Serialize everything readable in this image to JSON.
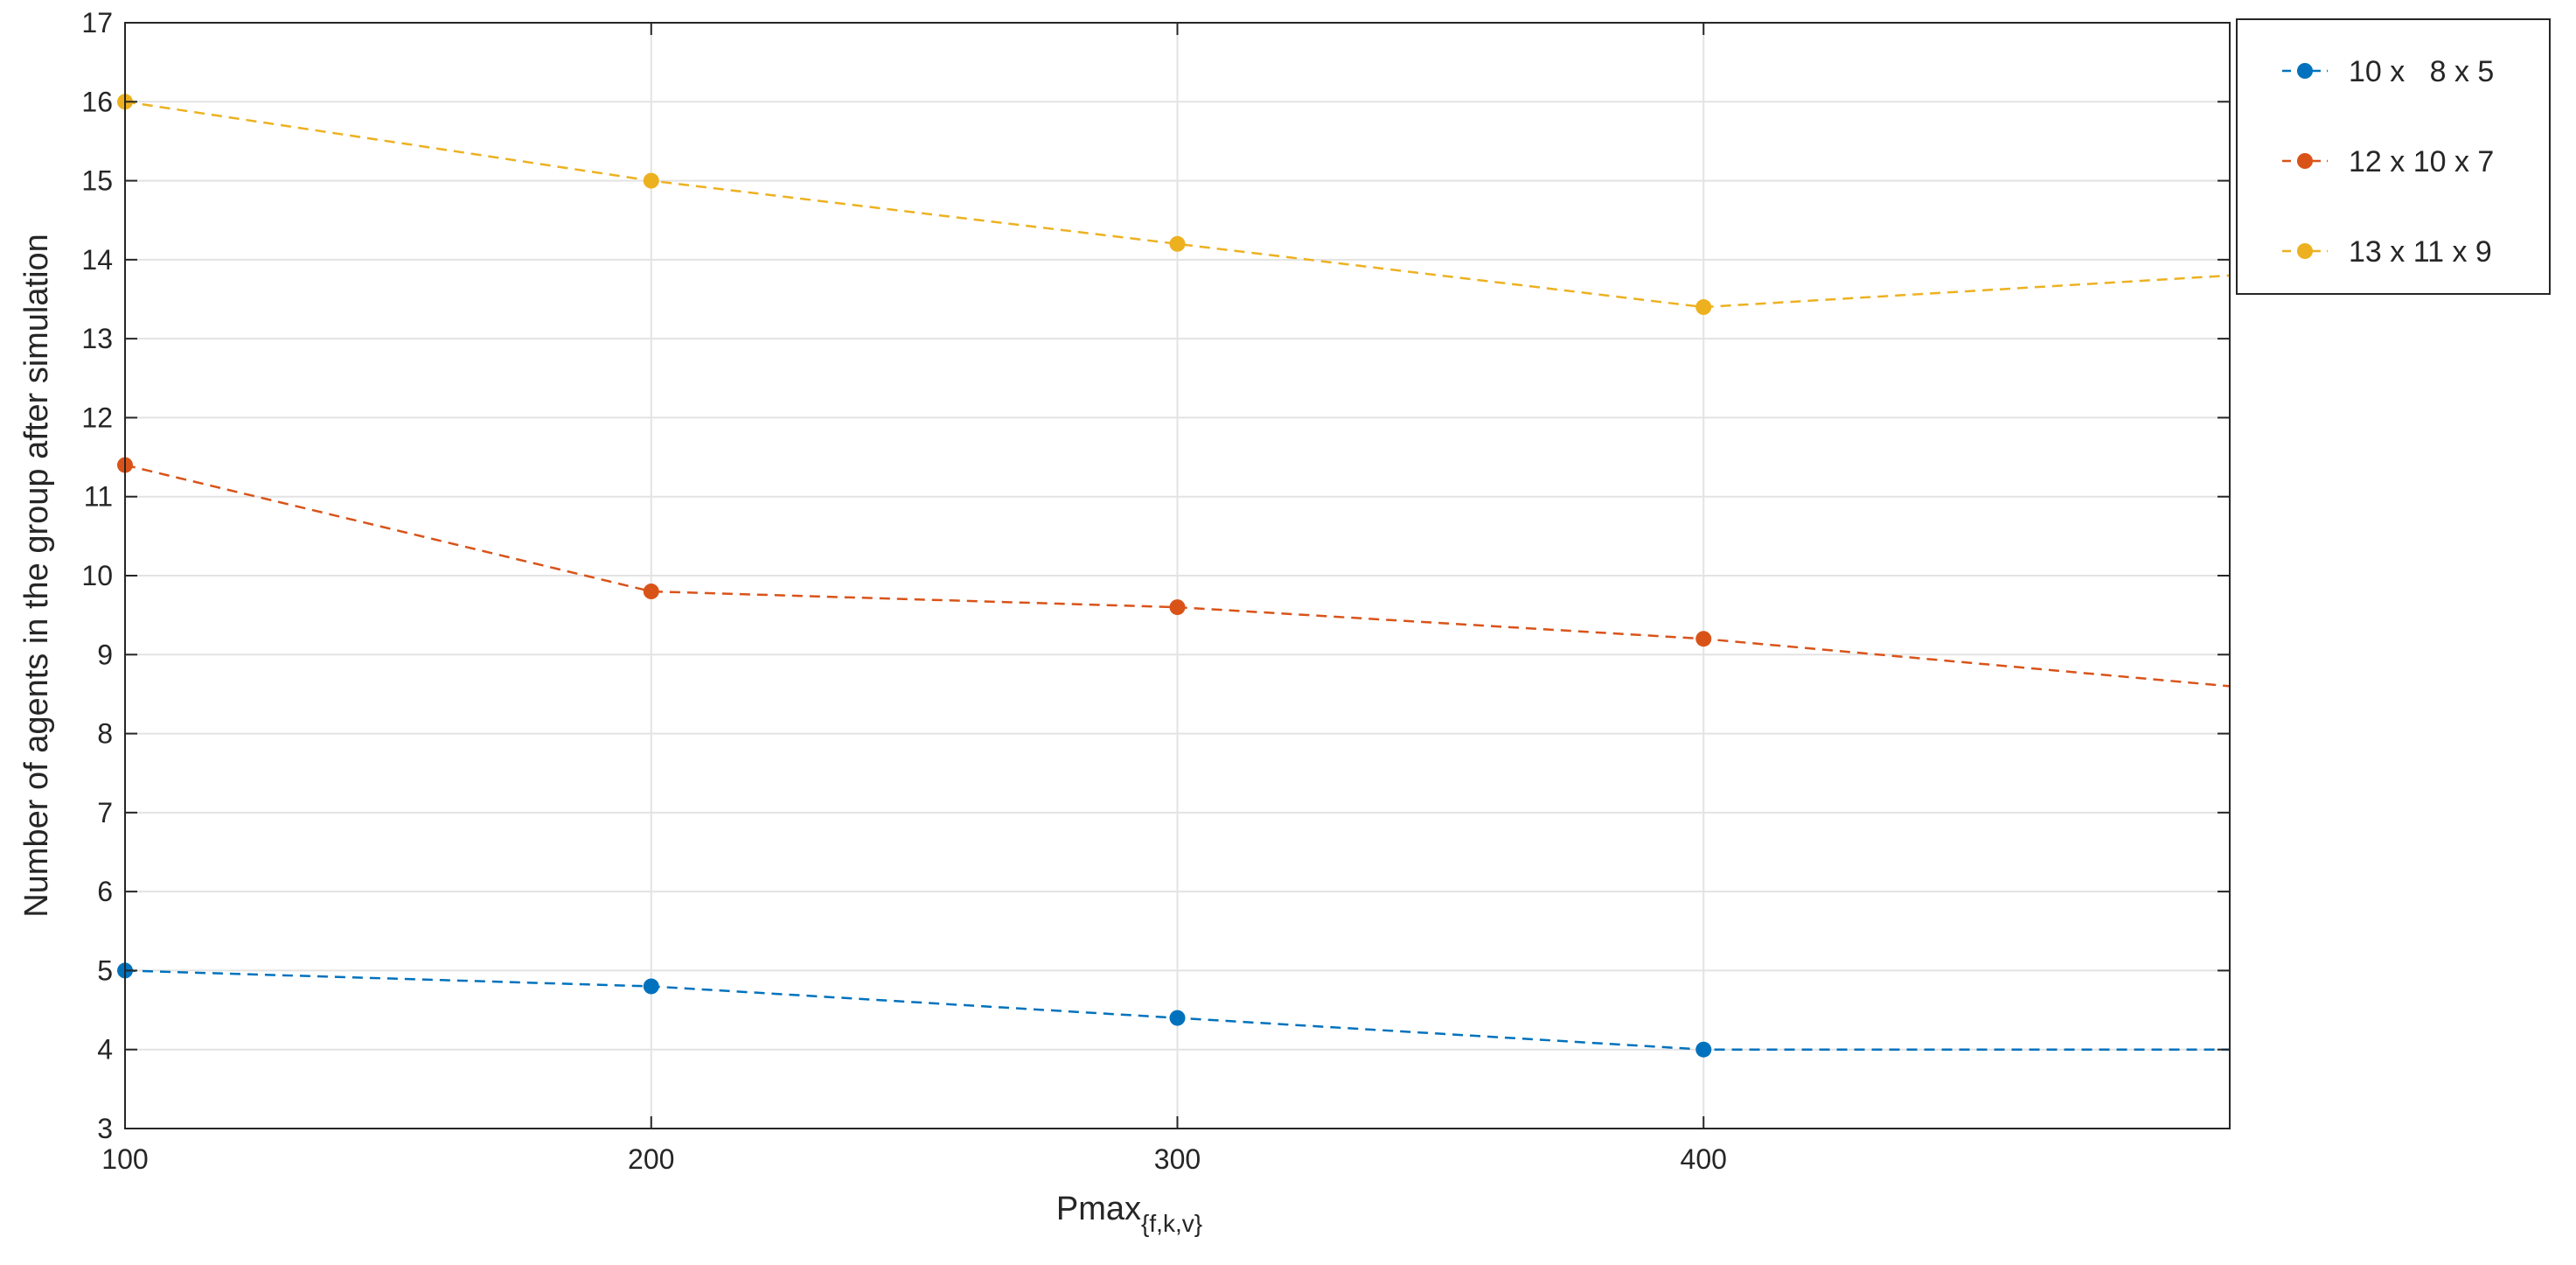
{
  "chart_data": {
    "type": "line",
    "title": "",
    "xlabel": "Pmax",
    "xlabel_subscript": "{f,k,v}",
    "ylabel": "Number of agents in the group after simulation",
    "xlim": [
      100,
      500
    ],
    "ylim": [
      3,
      17
    ],
    "xticks": [
      100,
      200,
      300,
      400
    ],
    "xtick_labels": [
      "100",
      "200",
      "300",
      "400"
    ],
    "yticks": [
      3,
      4,
      5,
      6,
      7,
      8,
      9,
      10,
      11,
      12,
      13,
      14,
      15,
      16,
      17
    ],
    "ytick_labels": [
      "3",
      "4",
      "5",
      "6",
      "7",
      "8",
      "9",
      "10",
      "11",
      "12",
      "13",
      "14",
      "15",
      "16",
      "17"
    ],
    "grid": true,
    "legend_position": "outside-top-right",
    "x": [
      100,
      200,
      300,
      400,
      500
    ],
    "series": [
      {
        "name": "10 x   8 x 5",
        "color": "#0072BD",
        "values": [
          5.0,
          4.8,
          4.4,
          4.0,
          4.0
        ]
      },
      {
        "name": "12 x 10 x 7",
        "color": "#D95319",
        "values": [
          11.4,
          9.8,
          9.6,
          9.2,
          8.6
        ]
      },
      {
        "name": "13 x 11 x 9",
        "color": "#EDB120",
        "values": [
          16.0,
          15.0,
          14.2,
          13.4,
          13.8
        ]
      }
    ]
  }
}
